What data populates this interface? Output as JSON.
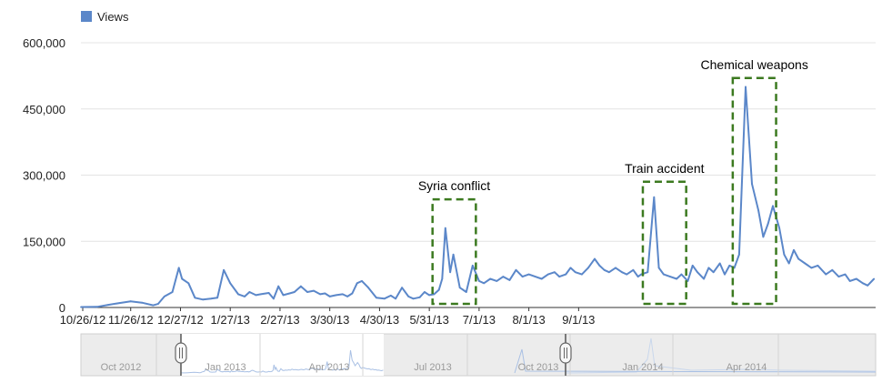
{
  "chart_data": {
    "type": "line",
    "series": [
      {
        "name": "Views",
        "color": "#5b87c9",
        "points": [
          [
            "2012-10-26",
            1000
          ],
          [
            "2012-11-05",
            1500
          ],
          [
            "2012-11-12",
            6000
          ],
          [
            "2012-11-19",
            10000
          ],
          [
            "2012-11-26",
            14000
          ],
          [
            "2012-12-03",
            11000
          ],
          [
            "2012-12-10",
            5000
          ],
          [
            "2012-12-13",
            8000
          ],
          [
            "2012-12-17",
            25000
          ],
          [
            "2012-12-22",
            35000
          ],
          [
            "2012-12-26",
            90000
          ],
          [
            "2012-12-28",
            65000
          ],
          [
            "2013-01-01",
            55000
          ],
          [
            "2013-01-05",
            22000
          ],
          [
            "2013-01-10",
            18000
          ],
          [
            "2013-01-15",
            20000
          ],
          [
            "2013-01-19",
            22000
          ],
          [
            "2013-01-23",
            85000
          ],
          [
            "2013-01-27",
            55000
          ],
          [
            "2013-02-01",
            30000
          ],
          [
            "2013-02-05",
            25000
          ],
          [
            "2013-02-08",
            35000
          ],
          [
            "2013-02-12",
            28000
          ],
          [
            "2013-02-15",
            30000
          ],
          [
            "2013-02-20",
            33000
          ],
          [
            "2013-02-23",
            20000
          ],
          [
            "2013-02-26",
            48000
          ],
          [
            "2013-03-01",
            28000
          ],
          [
            "2013-03-05",
            32000
          ],
          [
            "2013-03-08",
            35000
          ],
          [
            "2013-03-12",
            48000
          ],
          [
            "2013-03-16",
            35000
          ],
          [
            "2013-03-20",
            38000
          ],
          [
            "2013-03-24",
            30000
          ],
          [
            "2013-03-27",
            32000
          ],
          [
            "2013-03-30",
            25000
          ],
          [
            "2013-04-03",
            28000
          ],
          [
            "2013-04-07",
            30000
          ],
          [
            "2013-04-10",
            25000
          ],
          [
            "2013-04-13",
            32000
          ],
          [
            "2013-04-16",
            55000
          ],
          [
            "2013-04-19",
            60000
          ],
          [
            "2013-04-23",
            45000
          ],
          [
            "2013-04-28",
            22000
          ],
          [
            "2013-05-03",
            20000
          ],
          [
            "2013-05-07",
            27000
          ],
          [
            "2013-05-10",
            20000
          ],
          [
            "2013-05-14",
            45000
          ],
          [
            "2013-05-18",
            25000
          ],
          [
            "2013-05-21",
            20000
          ],
          [
            "2013-05-25",
            23000
          ],
          [
            "2013-05-28",
            35000
          ],
          [
            "2013-05-31",
            28000
          ],
          [
            "2013-06-03",
            30000
          ],
          [
            "2013-06-06",
            40000
          ],
          [
            "2013-06-08",
            65000
          ],
          [
            "2013-06-10",
            180000
          ],
          [
            "2013-06-13",
            80000
          ],
          [
            "2013-06-15",
            120000
          ],
          [
            "2013-06-19",
            45000
          ],
          [
            "2013-06-23",
            35000
          ],
          [
            "2013-06-27",
            95000
          ],
          [
            "2013-07-01",
            60000
          ],
          [
            "2013-07-04",
            55000
          ],
          [
            "2013-07-08",
            65000
          ],
          [
            "2013-07-12",
            60000
          ],
          [
            "2013-07-16",
            70000
          ],
          [
            "2013-07-20",
            62000
          ],
          [
            "2013-07-24",
            85000
          ],
          [
            "2013-07-28",
            70000
          ],
          [
            "2013-08-01",
            75000
          ],
          [
            "2013-08-05",
            70000
          ],
          [
            "2013-08-09",
            65000
          ],
          [
            "2013-08-13",
            75000
          ],
          [
            "2013-08-17",
            80000
          ],
          [
            "2013-08-20",
            70000
          ],
          [
            "2013-08-24",
            75000
          ],
          [
            "2013-08-27",
            90000
          ],
          [
            "2013-08-30",
            80000
          ],
          [
            "2013-09-03",
            75000
          ],
          [
            "2013-09-07",
            90000
          ],
          [
            "2013-09-11",
            110000
          ],
          [
            "2013-09-14",
            95000
          ],
          [
            "2013-09-17",
            85000
          ],
          [
            "2013-09-20",
            80000
          ],
          [
            "2013-09-24",
            90000
          ],
          [
            "2013-09-28",
            80000
          ],
          [
            "2013-10-01",
            75000
          ],
          [
            "2013-10-05",
            85000
          ],
          [
            "2013-10-08",
            70000
          ],
          [
            "2013-10-10",
            75000
          ],
          [
            "2013-10-14",
            80000
          ],
          [
            "2013-10-18",
            250000
          ],
          [
            "2013-10-21",
            90000
          ],
          [
            "2013-10-24",
            75000
          ],
          [
            "2013-10-28",
            70000
          ],
          [
            "2013-11-01",
            65000
          ],
          [
            "2013-11-04",
            75000
          ],
          [
            "2013-11-08",
            60000
          ],
          [
            "2013-11-11",
            95000
          ],
          [
            "2013-11-14",
            80000
          ],
          [
            "2013-11-18",
            65000
          ],
          [
            "2013-11-21",
            90000
          ],
          [
            "2013-11-24",
            80000
          ],
          [
            "2013-11-28",
            100000
          ],
          [
            "2013-12-01",
            75000
          ],
          [
            "2013-12-04",
            95000
          ],
          [
            "2013-12-07",
            90000
          ],
          [
            "2013-12-10",
            120000
          ],
          [
            "2013-12-14",
            500000
          ],
          [
            "2013-12-18",
            280000
          ],
          [
            "2013-12-22",
            220000
          ],
          [
            "2013-12-25",
            160000
          ],
          [
            "2013-12-28",
            190000
          ],
          [
            "2013-12-31",
            230000
          ],
          [
            "2014-01-04",
            180000
          ],
          [
            "2014-01-07",
            120000
          ],
          [
            "2014-01-10",
            100000
          ],
          [
            "2014-01-13",
            130000
          ],
          [
            "2014-01-16",
            110000
          ],
          [
            "2014-01-20",
            100000
          ],
          [
            "2014-01-24",
            90000
          ],
          [
            "2014-01-28",
            95000
          ],
          [
            "2014-02-02",
            75000
          ],
          [
            "2014-02-06",
            85000
          ],
          [
            "2014-02-10",
            70000
          ],
          [
            "2014-02-14",
            75000
          ],
          [
            "2014-02-17",
            60000
          ],
          [
            "2014-02-21",
            65000
          ],
          [
            "2014-02-25",
            55000
          ],
          [
            "2014-02-28",
            50000
          ],
          [
            "2014-03-04",
            65000
          ]
        ]
      }
    ],
    "x_ticks": [
      "10/26/12",
      "11/26/12",
      "12/27/12",
      "1/27/13",
      "2/27/13",
      "3/30/13",
      "4/30/13",
      "5/31/13",
      "7/1/13",
      "8/1/13",
      "9/1/13"
    ],
    "y_ticks": [
      "0",
      "150,000",
      "300,000",
      "450,000",
      "600,000"
    ],
    "y_range": [
      0,
      600000
    ],
    "legend": {
      "label": "Views",
      "placement": "top-left"
    },
    "annotations": [
      {
        "label": "Syria conflict",
        "x_start": "2013-06-02",
        "x_end": "2013-06-29",
        "y_top": 245000
      },
      {
        "label": "Train accident",
        "x_start": "2013-10-11",
        "x_end": "2013-11-07",
        "y_top": 285000
      },
      {
        "label": "Chemical weapons",
        "x_start": "2013-12-06",
        "x_end": "2014-01-02",
        "y_top": 520000
      }
    ],
    "grid": true,
    "navigator": {
      "labels": [
        "Oct 2012",
        "Jan 2013",
        "Apr 2013",
        "Jul 2013",
        "Oct 2013",
        "Jan 2014",
        "Apr 2014"
      ]
    }
  }
}
